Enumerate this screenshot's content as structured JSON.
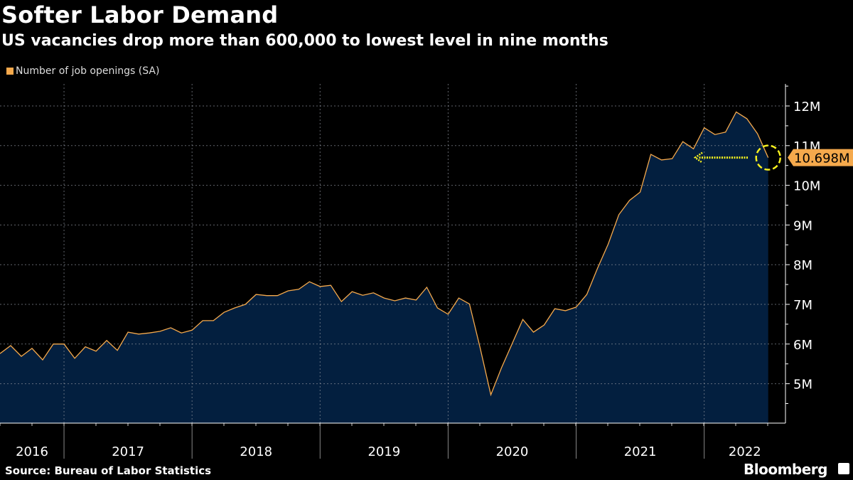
{
  "title": "Softer Labor Demand",
  "subtitle": "US vacancies drop more than 600,000 to lowest level in nine months",
  "source": "Source: Bureau of Labor Statistics",
  "brand": "Bloomberg",
  "colors": {
    "line": "#f5a94c",
    "area": "#031f3f",
    "annotation": "#f7f01e",
    "label_bg": "#f5a94c",
    "background": "#000000"
  },
  "chart_data": {
    "type": "area",
    "title": "Softer Labor Demand",
    "subtitle": "US vacancies drop more than 600,000 to lowest level in nine months",
    "legend": {
      "position": "top-left",
      "entries": [
        "Number of job openings (SA)"
      ]
    },
    "grid": true,
    "y_axis": {
      "side": "right",
      "range": [
        4,
        12.55
      ],
      "unit": "M",
      "ticks": [
        5,
        6,
        7,
        8,
        9,
        10,
        11,
        12
      ],
      "tick_labels": [
        "5M",
        "6M",
        "7M",
        "8M",
        "9M",
        "10M",
        "11M",
        "12M"
      ]
    },
    "x_axis": {
      "tick_labels": [
        "2016",
        "2017",
        "2018",
        "2019",
        "2020",
        "2021",
        "2022"
      ]
    },
    "series": [
      {
        "name": "Number of job openings (SA)",
        "x": [
          "2016-06",
          "2016-07",
          "2016-08",
          "2016-09",
          "2016-10",
          "2016-11",
          "2016-12",
          "2017-01",
          "2017-02",
          "2017-03",
          "2017-04",
          "2017-05",
          "2017-06",
          "2017-07",
          "2017-08",
          "2017-09",
          "2017-10",
          "2017-11",
          "2017-12",
          "2018-01",
          "2018-02",
          "2018-03",
          "2018-04",
          "2018-05",
          "2018-06",
          "2018-07",
          "2018-08",
          "2018-09",
          "2018-10",
          "2018-11",
          "2018-12",
          "2019-01",
          "2019-02",
          "2019-03",
          "2019-04",
          "2019-05",
          "2019-06",
          "2019-07",
          "2019-08",
          "2019-09",
          "2019-10",
          "2019-11",
          "2019-12",
          "2020-01",
          "2020-02",
          "2020-03",
          "2020-04",
          "2020-05",
          "2020-06",
          "2020-07",
          "2020-08",
          "2020-09",
          "2020-10",
          "2020-11",
          "2020-12",
          "2021-01",
          "2021-02",
          "2021-03",
          "2021-04",
          "2021-05",
          "2021-06",
          "2021-07",
          "2021-08",
          "2021-09",
          "2021-10",
          "2021-11",
          "2021-12",
          "2022-01",
          "2022-02",
          "2022-03",
          "2022-04",
          "2022-05",
          "2022-06"
        ],
        "values": [
          5.76,
          5.96,
          5.69,
          5.89,
          5.6,
          6.0,
          6.0,
          5.64,
          5.93,
          5.82,
          6.09,
          5.84,
          6.3,
          6.25,
          6.28,
          6.32,
          6.41,
          6.28,
          6.35,
          6.59,
          6.59,
          6.8,
          6.91,
          7.0,
          7.25,
          7.22,
          7.22,
          7.34,
          7.38,
          7.57,
          7.45,
          7.48,
          7.07,
          7.32,
          7.23,
          7.29,
          7.16,
          7.09,
          7.16,
          7.11,
          7.43,
          6.91,
          6.75,
          7.16,
          7.01,
          5.9,
          4.72,
          5.4,
          6.01,
          6.62,
          6.3,
          6.48,
          6.89,
          6.84,
          6.93,
          7.25,
          7.91,
          8.52,
          9.26,
          9.62,
          9.83,
          10.78,
          10.64,
          10.67,
          11.1,
          10.92,
          11.45,
          11.28,
          11.34,
          11.85,
          11.68,
          11.3,
          10.698
        ]
      }
    ],
    "annotations": [
      {
        "type": "last-value-label",
        "text": "10.698M"
      },
      {
        "type": "circle-and-arrow",
        "target": "2022-06"
      }
    ]
  }
}
